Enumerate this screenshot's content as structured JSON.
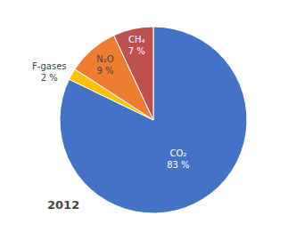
{
  "chart_data": {
    "type": "pie",
    "categories": [
      "CO₂",
      "F-gases",
      "N₂O",
      "CH₄"
    ],
    "values": [
      83,
      2,
      9,
      7
    ],
    "value_labels": [
      "83 %",
      "2 %",
      "9 %",
      "7 %"
    ],
    "colors": [
      "#4472C4",
      "#FFC000",
      "#ED7D31",
      "#C0504D"
    ],
    "data_labels": true,
    "annotations": [
      "2012"
    ]
  }
}
